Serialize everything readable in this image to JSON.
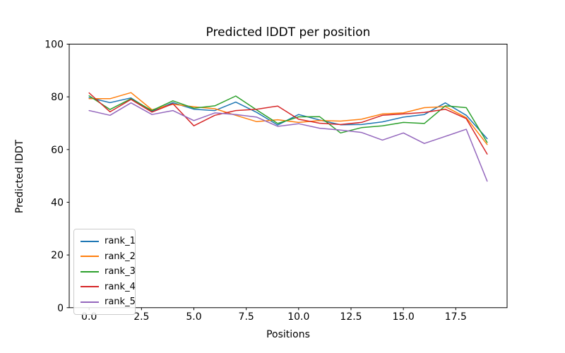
{
  "figure": {
    "background": "#ffffff",
    "spine_color": "#000000",
    "text_color": "#000000"
  },
  "chart_data": {
    "type": "line",
    "title": "Predicted lDDT per position",
    "xlabel": "Positions",
    "ylabel": "Predicted lDDT",
    "xlim": [
      -0.95,
      19.95
    ],
    "ylim": [
      0,
      100
    ],
    "grid": false,
    "legend_position": "lower left",
    "x_ticks": [
      0,
      2.5,
      5,
      7.5,
      10,
      12.5,
      15,
      17.5
    ],
    "x_tick_labels": [
      "0.0",
      "2.5",
      "5.0",
      "7.5",
      "10.0",
      "12.5",
      "15.0",
      "17.5"
    ],
    "y_ticks": [
      0,
      20,
      40,
      60,
      80,
      100
    ],
    "y_tick_labels": [
      "0",
      "20",
      "40",
      "60",
      "80",
      "100"
    ],
    "x": [
      0,
      1,
      2,
      3,
      4,
      5,
      6,
      7,
      8,
      9,
      10,
      11,
      12,
      13,
      14,
      15,
      16,
      17,
      18,
      19
    ],
    "series": [
      {
        "name": "rank_1",
        "color": "#1f77b4",
        "values": [
          79.7,
          77.8,
          79.6,
          74.5,
          77.8,
          75.3,
          74.8,
          78.0,
          74.1,
          69.3,
          73.3,
          71.2,
          69.4,
          69.5,
          70.5,
          72.3,
          73.3,
          77.7,
          73.0,
          64.1
        ]
      },
      {
        "name": "rank_2",
        "color": "#ff7f0e",
        "values": [
          79.3,
          79.3,
          81.6,
          75.1,
          77.2,
          76.2,
          75.5,
          73.0,
          70.6,
          71.3,
          70.3,
          71.0,
          70.8,
          71.5,
          73.5,
          73.9,
          75.9,
          76.3,
          72.1,
          61.9
        ]
      },
      {
        "name": "rank_3",
        "color": "#2ca02c",
        "values": [
          80.4,
          75.2,
          79.3,
          74.8,
          78.5,
          75.7,
          76.6,
          80.3,
          75.0,
          69.9,
          72.4,
          72.5,
          66.3,
          68.3,
          69.0,
          70.3,
          69.9,
          76.6,
          75.9,
          62.7
        ]
      },
      {
        "name": "rank_4",
        "color": "#d62728",
        "values": [
          81.5,
          74.3,
          79.0,
          74.2,
          77.4,
          69.0,
          73.0,
          74.8,
          75.3,
          76.5,
          71.5,
          70.0,
          69.5,
          70.3,
          73.0,
          73.5,
          74.1,
          75.3,
          71.7,
          58.3
        ]
      },
      {
        "name": "rank_5",
        "color": "#9467bd",
        "values": [
          74.8,
          73.0,
          77.7,
          73.3,
          74.8,
          71.0,
          73.9,
          73.3,
          72.3,
          68.8,
          69.8,
          68.1,
          67.4,
          66.5,
          63.6,
          66.3,
          62.3,
          65.0,
          67.7,
          48.0
        ]
      }
    ]
  }
}
